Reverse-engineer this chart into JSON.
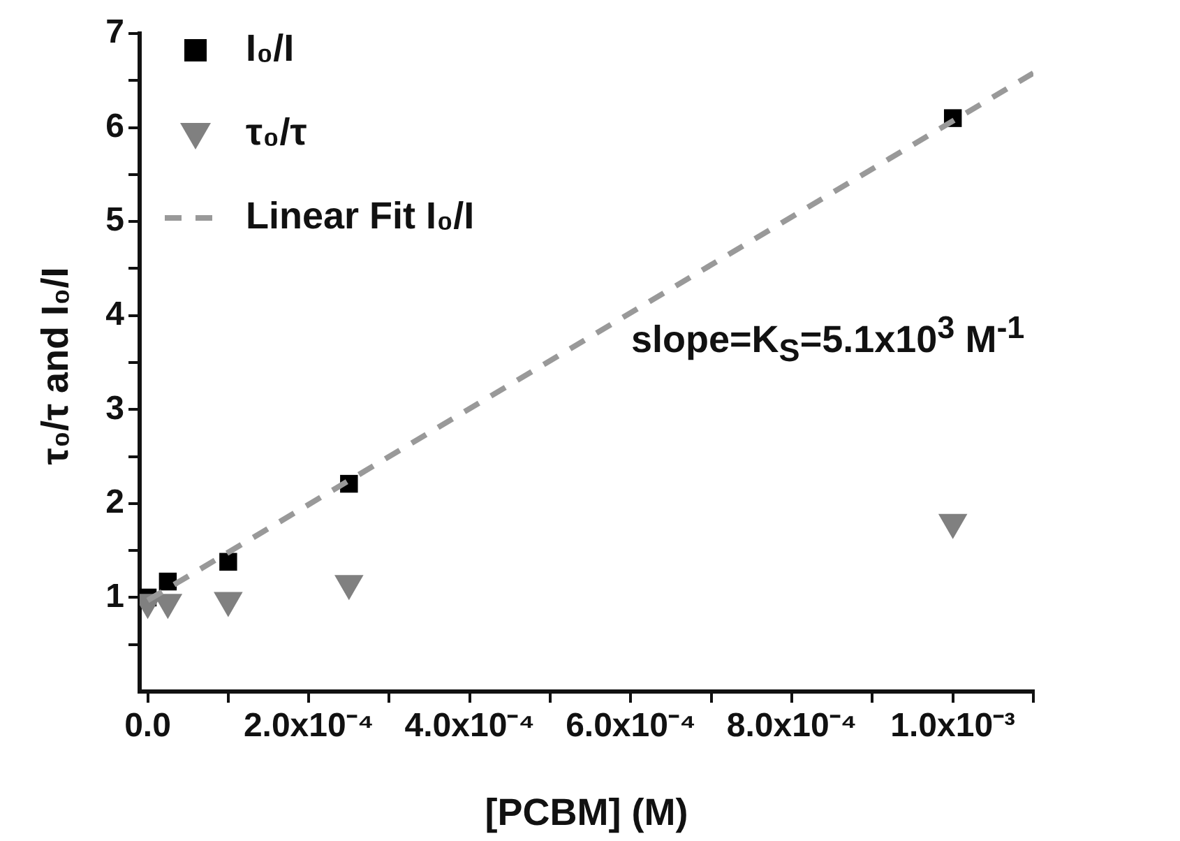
{
  "chart_data": {
    "type": "scatter",
    "xlabel": "[PCBM] (M)",
    "ylabel": "τ₀/τ and I₀/I",
    "xlim": [
      -1e-05,
      0.0011
    ],
    "xticks": [
      {
        "value": 0,
        "label": "0.0"
      },
      {
        "value": 0.0001,
        "label": null
      },
      {
        "value": 0.0002,
        "label": "2.0x10⁻⁴"
      },
      {
        "value": 0.0003,
        "label": null
      },
      {
        "value": 0.0004,
        "label": "4.0x10⁻⁴"
      },
      {
        "value": 0.0005,
        "label": null
      },
      {
        "value": 0.0006,
        "label": "6.0x10⁻⁴"
      },
      {
        "value": 0.0007,
        "label": null
      },
      {
        "value": 0.0008,
        "label": "8.0x10⁻⁴"
      },
      {
        "value": 0.0009,
        "label": null
      },
      {
        "value": 0.001,
        "label": "1.0x10⁻³"
      },
      {
        "value": 0.0011,
        "label": null
      }
    ],
    "ylim": [
      0,
      7
    ],
    "yticks": [
      {
        "value": 0.5,
        "label": null
      },
      1,
      {
        "value": 1.5,
        "label": null
      },
      2,
      {
        "value": 2.5,
        "label": null
      },
      3,
      {
        "value": 3.5,
        "label": null
      },
      4,
      {
        "value": 4.5,
        "label": null
      },
      5,
      {
        "value": 5.5,
        "label": null
      },
      6,
      {
        "value": 6.5,
        "label": null
      },
      7
    ],
    "grid": false,
    "legend": "top left",
    "annotations": [
      "slope=K$_{S}$=5.1x10$^{3}$ M$^{-1}$"
    ],
    "series": [
      {
        "name": "I₀/I",
        "type": "scatter",
        "marker": "square",
        "color": "#000000",
        "x": [
          0,
          2.5e-05,
          0.0001,
          0.00025,
          0.001
        ],
        "values": [
          1.0,
          1.17,
          1.38,
          2.21,
          6.1
        ]
      },
      {
        "name": "τ₀/τ",
        "type": "scatter",
        "marker": "triangle",
        "color": "#808080",
        "x": [
          0,
          2.5e-05,
          0.0001,
          0.00025,
          0.001
        ],
        "values": [
          0.95,
          0.95,
          0.97,
          1.15,
          1.8
        ]
      },
      {
        "name": "Linear Fit I₀/I",
        "type": "line",
        "marker": "none",
        "line_style": "dashed",
        "color": "#999999",
        "x": [
          0,
          0.0011
        ],
        "values": [
          0.97,
          6.58
        ]
      }
    ]
  }
}
